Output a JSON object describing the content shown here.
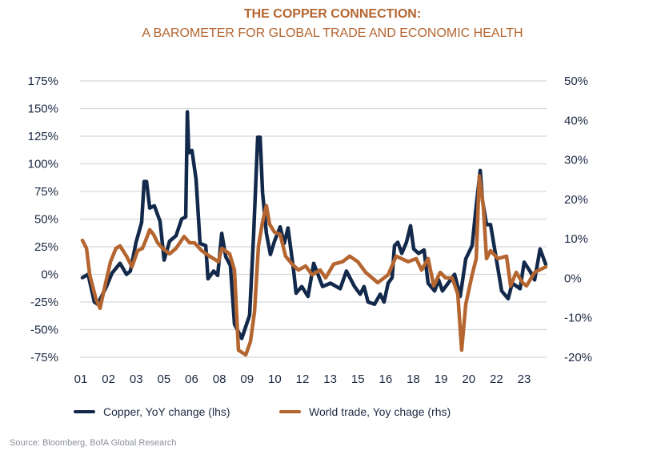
{
  "chart_data": {
    "type": "line",
    "title": "THE COPPER CONNECTION:",
    "subtitle": "A BAROMETER FOR GLOBAL TRADE AND ECONOMIC HEALTH",
    "xlim": [
      2001,
      2024
    ],
    "x_tick_labels": [
      "01",
      "02",
      "03",
      "05",
      "06",
      "08",
      "09",
      "10",
      "12",
      "13",
      "15",
      "16",
      "18",
      "19",
      "20",
      "22",
      "23"
    ],
    "y_left": {
      "lim": [
        -75,
        175
      ],
      "ticks": [
        175,
        150,
        125,
        100,
        75,
        50,
        25,
        0,
        -25,
        -50,
        -75
      ],
      "tick_labels": [
        "175%",
        "150%",
        "125%",
        "100%",
        "75%",
        "50%",
        "25%",
        "0%",
        "-25%",
        "-50%",
        "-75%"
      ]
    },
    "y_right": {
      "lim": [
        -20,
        50
      ],
      "ticks": [
        50,
        40,
        30,
        20,
        10,
        0,
        -10,
        -20
      ],
      "tick_labels": [
        "50%",
        "40%",
        "30%",
        "20%",
        "10%",
        "0%",
        "-10%",
        "-20%"
      ]
    },
    "grid": true,
    "legend_placement": "bottom",
    "series": [
      {
        "name": "Copper, YoY change (lhs)",
        "axis": "left",
        "color": "#13294b",
        "x": [
          2001.04,
          2001.32,
          2001.63,
          2001.79,
          2002.23,
          2002.5,
          2002.9,
          2003.22,
          2003.41,
          2003.69,
          2003.97,
          2004.09,
          2004.21,
          2004.37,
          2004.6,
          2004.88,
          2005.08,
          2005.35,
          2005.67,
          2005.95,
          2006.15,
          2006.23,
          2006.3,
          2006.46,
          2006.66,
          2006.86,
          2007.14,
          2007.25,
          2007.53,
          2007.73,
          2007.93,
          2008.13,
          2008.36,
          2008.56,
          2008.92,
          2009.31,
          2009.51,
          2009.71,
          2009.83,
          2009.95,
          2010.14,
          2010.34,
          2010.54,
          2010.82,
          2011.02,
          2011.21,
          2011.49,
          2011.61,
          2011.89,
          2012.2,
          2012.48,
          2012.92,
          2013.31,
          2013.79,
          2014.1,
          2014.5,
          2014.78,
          2014.97,
          2015.17,
          2015.49,
          2015.77,
          2015.96,
          2016.16,
          2016.36,
          2016.48,
          2016.64,
          2016.84,
          2017.07,
          2017.27,
          2017.43,
          2017.67,
          2017.94,
          2018.14,
          2018.46,
          2018.66,
          2018.85,
          2019.13,
          2019.45,
          2019.73,
          2020.0,
          2020.32,
          2020.52,
          2020.72,
          2020.83,
          2021.03,
          2021.23,
          2021.43,
          2021.78,
          2022.1,
          2022.3,
          2022.69,
          2022.89,
          2023.21,
          2023.41,
          2023.68,
          2023.96
        ],
        "y": [
          -3,
          0,
          -25,
          -27,
          -11,
          1,
          10,
          0,
          3,
          29,
          47,
          84,
          84,
          60,
          62,
          48,
          13,
          30,
          35,
          50,
          52,
          147,
          110,
          112,
          86,
          28,
          26,
          -4,
          3,
          -1,
          37,
          16,
          8,
          -45,
          -58,
          -37,
          37,
          124,
          124,
          74,
          37,
          18,
          30,
          43,
          28,
          42,
          3,
          -17,
          -11,
          -20,
          10,
          -11,
          -8,
          -13,
          3,
          -11,
          -18,
          -11,
          -25,
          -27,
          -18,
          -25,
          -8,
          -3,
          26,
          29,
          19,
          29,
          44,
          23,
          19,
          22,
          -8,
          -15,
          -5,
          -15,
          -8,
          0,
          -20,
          14,
          26,
          62,
          94,
          67,
          45,
          45,
          23,
          -15,
          -22,
          -8,
          -13,
          11,
          2,
          -5,
          23,
          9
        ]
      },
      {
        "name": "World trade, Yoy chage (rhs)",
        "axis": "right",
        "color": "#b5652f",
        "x": [
          2001.04,
          2001.24,
          2001.4,
          2001.71,
          2001.91,
          2002.19,
          2002.43,
          2002.7,
          2002.9,
          2003.22,
          2003.49,
          2003.77,
          2004.01,
          2004.17,
          2004.37,
          2004.56,
          2004.76,
          2005.0,
          2005.35,
          2005.67,
          2006.07,
          2006.34,
          2006.58,
          2006.94,
          2007.33,
          2007.77,
          2007.93,
          2008.32,
          2008.56,
          2008.76,
          2009.12,
          2009.35,
          2009.55,
          2009.75,
          2009.95,
          2010.14,
          2010.3,
          2010.54,
          2010.82,
          2011.09,
          2011.41,
          2011.73,
          2012.08,
          2012.4,
          2012.8,
          2013.07,
          2013.47,
          2013.91,
          2014.26,
          2014.66,
          2015.05,
          2015.65,
          2016.16,
          2016.56,
          2017.15,
          2017.55,
          2017.82,
          2018.14,
          2018.42,
          2018.74,
          2019.01,
          2019.33,
          2019.61,
          2019.8,
          2020.0,
          2020.32,
          2020.52,
          2020.67,
          2020.87,
          2021.03,
          2021.23,
          2021.59,
          2022.02,
          2022.22,
          2022.5,
          2022.81,
          2023.01,
          2023.41,
          2023.96
        ],
        "y": [
          9.6,
          7.6,
          0.9,
          -5.2,
          -7.6,
          -1.1,
          4.2,
          7.6,
          8.2,
          5.6,
          2.9,
          7.0,
          7.6,
          9.6,
          12.3,
          11.1,
          9.0,
          7.6,
          6.2,
          7.6,
          10.6,
          9.0,
          9.0,
          7.0,
          5.6,
          4.2,
          7.6,
          6.2,
          2.1,
          -18.2,
          -19.4,
          -16.1,
          -8.6,
          8.2,
          14.3,
          18.4,
          13.7,
          11.7,
          11.1,
          5.6,
          3.6,
          2.1,
          3.1,
          0.9,
          2.1,
          0.1,
          3.6,
          4.2,
          5.6,
          4.2,
          1.5,
          -1.1,
          0.9,
          5.6,
          4.2,
          5.0,
          2.1,
          5.0,
          -1.9,
          1.5,
          0.1,
          0.1,
          -4.0,
          -18.2,
          -6.6,
          0.9,
          5.0,
          25.9,
          18.4,
          5.0,
          7.0,
          5.0,
          5.6,
          -1.9,
          1.5,
          -1.1,
          -1.9,
          1.5,
          2.9
        ]
      }
    ],
    "source": "Source: Bloomberg, BofA Global Research"
  }
}
